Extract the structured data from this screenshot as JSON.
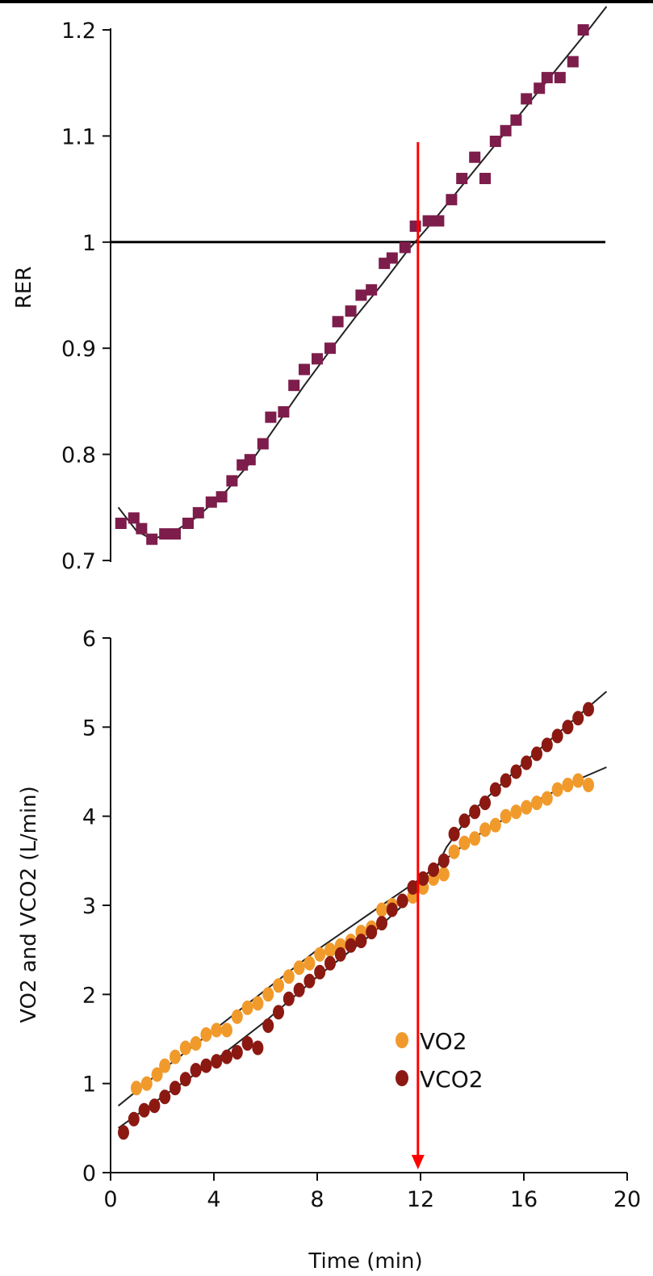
{
  "chart_data": [
    {
      "type": "scatter",
      "ylabel": "RER",
      "xlabel": "",
      "xlim": [
        0,
        20
      ],
      "ylim": [
        0.7,
        1.2
      ],
      "y_ticks": [
        "0.7",
        "0.8",
        "0.9",
        "1",
        "1.1",
        "1.2"
      ],
      "reference_line_y": 1.0,
      "grid": false,
      "series": [
        {
          "color": "#7d1d4b",
          "marker": "square",
          "x": [
            0.4,
            0.9,
            1.2,
            1.6,
            2.1,
            2.5,
            3.0,
            3.4,
            3.9,
            4.3,
            4.7,
            5.1,
            5.4,
            5.9,
            6.2,
            6.7,
            7.1,
            7.5,
            8.0,
            8.5,
            8.8,
            9.3,
            9.7,
            10.1,
            10.6,
            10.9,
            11.4,
            11.8,
            12.3,
            12.7,
            13.2,
            13.6,
            14.1,
            14.5,
            14.9,
            15.3,
            15.7,
            16.1,
            16.6,
            16.9,
            17.4,
            17.9,
            18.3
          ],
          "y": [
            0.735,
            0.74,
            0.73,
            0.72,
            0.725,
            0.725,
            0.735,
            0.745,
            0.755,
            0.76,
            0.775,
            0.79,
            0.795,
            0.81,
            0.835,
            0.84,
            0.865,
            0.88,
            0.89,
            0.9,
            0.925,
            0.935,
            0.95,
            0.955,
            0.98,
            0.985,
            0.995,
            1.015,
            1.02,
            1.02,
            1.04,
            1.06,
            1.08,
            1.06,
            1.095,
            1.105,
            1.115,
            1.135,
            1.145,
            1.155,
            1.155,
            1.17,
            1.2
          ]
        }
      ],
      "fit_curve": {
        "x": [
          0.3,
          1.0,
          1.6,
          2.4,
          3.4,
          4.5,
          5.5,
          6.5,
          7.5,
          8.5,
          9.5,
          10.5,
          11.5,
          12.5,
          13.5,
          14.5,
          15.5,
          16.5,
          17.5,
          18.5,
          19.2
        ],
        "y": [
          0.75,
          0.728,
          0.72,
          0.726,
          0.742,
          0.766,
          0.795,
          0.83,
          0.865,
          0.898,
          0.93,
          0.96,
          0.992,
          1.02,
          1.05,
          1.08,
          1.11,
          1.14,
          1.17,
          1.2,
          1.222
        ]
      }
    },
    {
      "type": "scatter",
      "xlabel": "Time (min)",
      "ylabel": "VO2 and VCO2 (L/min)",
      "xlim": [
        0,
        20
      ],
      "ylim": [
        0,
        6
      ],
      "x_ticks": [
        "0",
        "4",
        "8",
        "12",
        "16",
        "20"
      ],
      "y_ticks": [
        "0",
        "1",
        "2",
        "3",
        "4",
        "5",
        "6"
      ],
      "grid": false,
      "legend": "bottom-right",
      "legend_entries": [
        {
          "text": "VO2",
          "color": "#f19a2c"
        },
        {
          "text": "VCO2",
          "color": "#8b1912"
        }
      ],
      "threshold_time": 11.9,
      "threshold_color": "#ff0000",
      "series": [
        {
          "name": "VO2",
          "color": "#f19a2c",
          "x": [
            1.0,
            1.4,
            1.8,
            2.1,
            2.5,
            2.9,
            3.3,
            3.7,
            4.1,
            4.5,
            4.9,
            5.3,
            5.7,
            6.1,
            6.5,
            6.9,
            7.3,
            7.7,
            8.1,
            8.5,
            8.9,
            9.3,
            9.7,
            10.1,
            10.5,
            10.9,
            11.3,
            11.7,
            12.1,
            12.5,
            12.9,
            13.3,
            13.7,
            14.1,
            14.5,
            14.9,
            15.3,
            15.7,
            16.1,
            16.5,
            16.9,
            17.3,
            17.7,
            18.1,
            18.5
          ],
          "y": [
            0.95,
            1.0,
            1.1,
            1.2,
            1.3,
            1.4,
            1.45,
            1.55,
            1.6,
            1.6,
            1.75,
            1.85,
            1.9,
            2.0,
            2.1,
            2.2,
            2.3,
            2.35,
            2.45,
            2.5,
            2.55,
            2.6,
            2.7,
            2.75,
            2.95,
            3.0,
            3.05,
            3.1,
            3.2,
            3.3,
            3.35,
            3.6,
            3.7,
            3.75,
            3.85,
            3.9,
            4.0,
            4.05,
            4.1,
            4.15,
            4.2,
            4.3,
            4.35,
            4.4,
            4.35
          ]
        },
        {
          "name": "VCO2",
          "color": "#8b1912",
          "x": [
            0.5,
            0.9,
            1.3,
            1.7,
            2.1,
            2.5,
            2.9,
            3.3,
            3.7,
            4.1,
            4.5,
            4.9,
            5.3,
            5.7,
            6.1,
            6.5,
            6.9,
            7.3,
            7.7,
            8.1,
            8.5,
            8.9,
            9.3,
            9.7,
            10.1,
            10.5,
            10.9,
            11.3,
            11.7,
            12.1,
            12.5,
            12.9,
            13.3,
            13.7,
            14.1,
            14.5,
            14.9,
            15.3,
            15.7,
            16.1,
            16.5,
            16.9,
            17.3,
            17.7,
            18.1,
            18.5
          ],
          "y": [
            0.45,
            0.6,
            0.7,
            0.75,
            0.85,
            0.95,
            1.05,
            1.15,
            1.2,
            1.25,
            1.3,
            1.35,
            1.45,
            1.4,
            1.65,
            1.8,
            1.95,
            2.05,
            2.15,
            2.25,
            2.35,
            2.45,
            2.55,
            2.6,
            2.7,
            2.8,
            2.95,
            3.05,
            3.2,
            3.3,
            3.4,
            3.5,
            3.8,
            3.95,
            4.05,
            4.15,
            4.3,
            4.4,
            4.5,
            4.6,
            4.7,
            4.8,
            4.9,
            5.0,
            5.1,
            5.2
          ]
        }
      ],
      "fit_curves": [
        {
          "name": "VO2",
          "x": [
            0.3,
            2,
            4,
            6,
            8,
            10,
            12,
            14,
            16,
            18,
            19.2
          ],
          "y": [
            0.75,
            1.15,
            1.6,
            2.05,
            2.5,
            2.9,
            3.3,
            3.75,
            4.1,
            4.4,
            4.55
          ]
        },
        {
          "name": "VCO2",
          "x": [
            0.3,
            2,
            4,
            6,
            8,
            10,
            11.5,
            12.5,
            13,
            14,
            16,
            18,
            19.2
          ],
          "y": [
            0.5,
            0.85,
            1.25,
            1.7,
            2.2,
            2.65,
            3.05,
            3.35,
            3.65,
            4.05,
            4.6,
            5.1,
            5.4
          ]
        }
      ]
    }
  ]
}
